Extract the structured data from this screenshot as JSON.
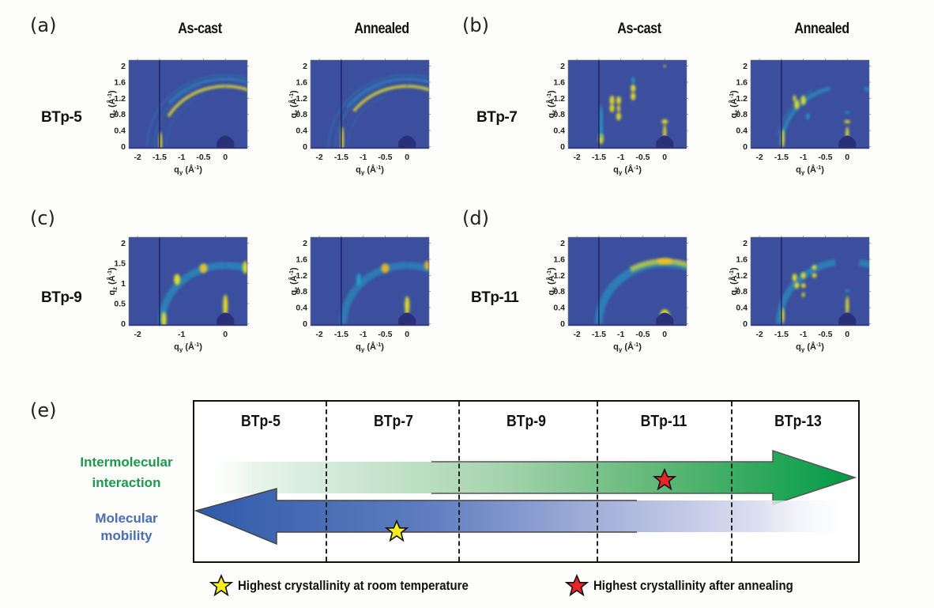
{
  "panels": {
    "a": {
      "letter": "(a)",
      "sample": "BTp-5"
    },
    "b": {
      "letter": "(b)",
      "sample": "BTp-7"
    },
    "c": {
      "letter": "(c)",
      "sample": "BTp-9"
    },
    "d": {
      "letter": "(d)",
      "sample": "BTp-11"
    },
    "e": {
      "letter": "(e)"
    }
  },
  "column_titles": {
    "as_cast": "As-cast",
    "annealed": "Annealed"
  },
  "axes": {
    "xlabel": "q",
    "xlabel_sub": "y",
    "ylabel": "q",
    "ylabel_sub": "z",
    "unit": "(Å",
    "unit_exp": "-1",
    "unit_close": ")",
    "x_ticks": [
      "-2",
      "-1.5",
      "-1",
      "-0.5",
      "0"
    ],
    "x_ticks_c_ascast": [
      "-2",
      "-1",
      "0"
    ],
    "y_ticks_default": [
      "0",
      "0.4",
      "0.8",
      "1.2",
      "1.6",
      "2"
    ],
    "y_ticks_c_ascast": [
      "0",
      "0.5",
      "1",
      "1.5",
      "2"
    ],
    "x_range": [
      -2.2,
      0.5
    ],
    "y_range": [
      -0.05,
      2.15
    ]
  },
  "colormap": {
    "background": "#3b4f9e",
    "low": "#2c3b8c",
    "mid": "#21a6c8",
    "high": "#f2e81e",
    "peak": "#f7f01a"
  },
  "schematic": {
    "columns": [
      "BTp-5",
      "BTp-7",
      "BTp-9",
      "BTp-11",
      "BTp-13"
    ],
    "green_label_line1": "Intermolecular",
    "green_label_line2": "interaction",
    "blue_label_line1": "Molecular",
    "blue_label_line2": "mobility",
    "green_color": "#0e9a47",
    "blue_color": "#3f64ad",
    "yellow_star_column": "BTp-7",
    "red_star_column": "BTp-11",
    "yellow_star_color": "#f7ef1c",
    "red_star_color": "#e8262a"
  },
  "legend": {
    "yellow": "Highest crystallinity at room temperature",
    "red": "Highest crystallinity after annealing"
  }
}
